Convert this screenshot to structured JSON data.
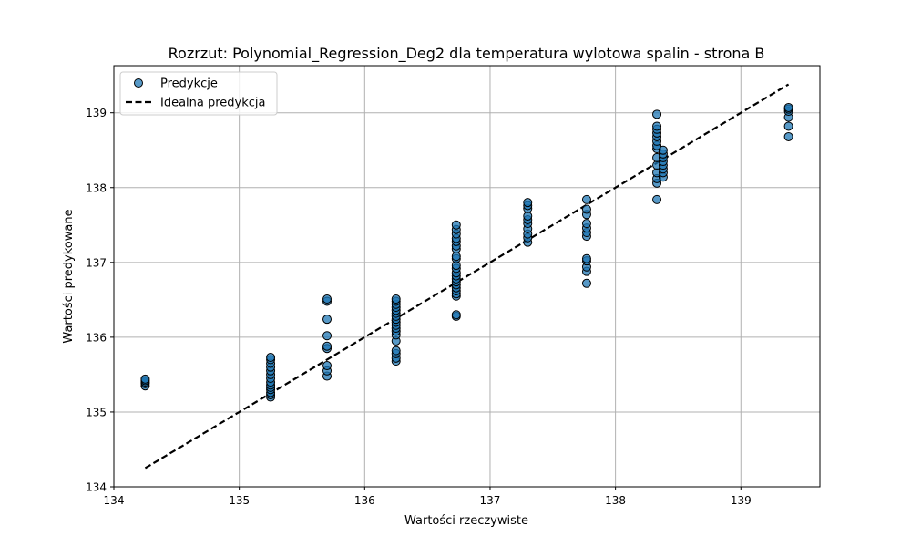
{
  "chart_data": {
    "type": "scatter",
    "title": "Rozrzut: Polynomial_Regression_Deg2 dla temperatura wylotowa spalin - strona B",
    "xlabel": "Wartości rzeczywiste",
    "ylabel": "Wartości predykowane",
    "xlim": [
      134.0,
      139.63
    ],
    "ylim": [
      134.0,
      139.63
    ],
    "xticks": [
      134,
      135,
      136,
      137,
      138,
      139
    ],
    "yticks": [
      134,
      135,
      136,
      137,
      138,
      139
    ],
    "grid": true,
    "legend_position": "top-left",
    "legend": [
      "Predykcje",
      "Idealna predykcja"
    ],
    "series": [
      {
        "name": "Predykcje",
        "kind": "scatter",
        "color": "#1f77b4",
        "points": [
          [
            134.25,
            135.35
          ],
          [
            134.25,
            135.38
          ],
          [
            134.25,
            135.4
          ],
          [
            134.25,
            135.42
          ],
          [
            134.25,
            135.44
          ],
          [
            135.25,
            135.2
          ],
          [
            135.25,
            135.23
          ],
          [
            135.25,
            135.26
          ],
          [
            135.25,
            135.3
          ],
          [
            135.25,
            135.33
          ],
          [
            135.25,
            135.36
          ],
          [
            135.25,
            135.4
          ],
          [
            135.25,
            135.45
          ],
          [
            135.25,
            135.5
          ],
          [
            135.25,
            135.55
          ],
          [
            135.25,
            135.6
          ],
          [
            135.25,
            135.65
          ],
          [
            135.25,
            135.7
          ],
          [
            135.25,
            135.73
          ],
          [
            135.7,
            135.48
          ],
          [
            135.7,
            135.55
          ],
          [
            135.7,
            135.62
          ],
          [
            135.7,
            135.85
          ],
          [
            135.7,
            135.88
          ],
          [
            135.7,
            136.02
          ],
          [
            135.7,
            136.24
          ],
          [
            135.7,
            136.48
          ],
          [
            135.7,
            136.51
          ],
          [
            136.25,
            135.68
          ],
          [
            136.25,
            135.72
          ],
          [
            136.25,
            135.78
          ],
          [
            136.25,
            135.82
          ],
          [
            136.25,
            135.95
          ],
          [
            136.25,
            136.03
          ],
          [
            136.25,
            136.08
          ],
          [
            136.25,
            136.12
          ],
          [
            136.25,
            136.16
          ],
          [
            136.25,
            136.2
          ],
          [
            136.25,
            136.24
          ],
          [
            136.25,
            136.28
          ],
          [
            136.25,
            136.32
          ],
          [
            136.25,
            136.36
          ],
          [
            136.25,
            136.4
          ],
          [
            136.25,
            136.44
          ],
          [
            136.25,
            136.48
          ],
          [
            136.25,
            136.51
          ],
          [
            136.73,
            136.28
          ],
          [
            136.73,
            136.3
          ],
          [
            136.73,
            136.55
          ],
          [
            136.73,
            136.58
          ],
          [
            136.73,
            136.62
          ],
          [
            136.73,
            136.66
          ],
          [
            136.73,
            136.7
          ],
          [
            136.73,
            136.74
          ],
          [
            136.73,
            136.78
          ],
          [
            136.73,
            136.82
          ],
          [
            136.73,
            136.86
          ],
          [
            136.73,
            136.92
          ],
          [
            136.73,
            136.96
          ],
          [
            136.73,
            137.05
          ],
          [
            136.73,
            137.08
          ],
          [
            136.73,
            137.18
          ],
          [
            136.73,
            137.22
          ],
          [
            136.73,
            137.28
          ],
          [
            136.73,
            137.32
          ],
          [
            136.73,
            137.38
          ],
          [
            136.73,
            137.44
          ],
          [
            136.73,
            137.5
          ],
          [
            137.3,
            137.27
          ],
          [
            137.3,
            137.33
          ],
          [
            137.3,
            137.38
          ],
          [
            137.3,
            137.45
          ],
          [
            137.3,
            137.52
          ],
          [
            137.3,
            137.57
          ],
          [
            137.3,
            137.62
          ],
          [
            137.3,
            137.72
          ],
          [
            137.3,
            137.76
          ],
          [
            137.3,
            137.8
          ],
          [
            137.77,
            136.72
          ],
          [
            137.77,
            136.88
          ],
          [
            137.77,
            136.94
          ],
          [
            137.77,
            137.02
          ],
          [
            137.77,
            137.05
          ],
          [
            137.77,
            137.35
          ],
          [
            137.77,
            137.4
          ],
          [
            137.77,
            137.46
          ],
          [
            137.77,
            137.52
          ],
          [
            137.77,
            137.64
          ],
          [
            137.77,
            137.71
          ],
          [
            137.77,
            137.84
          ],
          [
            138.33,
            137.84
          ],
          [
            138.33,
            138.06
          ],
          [
            138.33,
            138.12
          ],
          [
            138.33,
            138.2
          ],
          [
            138.33,
            138.3
          ],
          [
            138.33,
            138.4
          ],
          [
            138.33,
            138.52
          ],
          [
            138.33,
            138.56
          ],
          [
            138.33,
            138.62
          ],
          [
            138.33,
            138.68
          ],
          [
            138.33,
            138.73
          ],
          [
            138.33,
            138.78
          ],
          [
            138.33,
            138.82
          ],
          [
            138.33,
            138.98
          ],
          [
            138.38,
            138.14
          ],
          [
            138.38,
            138.2
          ],
          [
            138.38,
            138.25
          ],
          [
            138.38,
            138.3
          ],
          [
            138.38,
            138.35
          ],
          [
            138.38,
            138.4
          ],
          [
            138.38,
            138.45
          ],
          [
            138.38,
            138.5
          ],
          [
            139.38,
            138.68
          ],
          [
            139.38,
            138.82
          ],
          [
            139.38,
            138.94
          ],
          [
            139.38,
            139.02
          ],
          [
            139.38,
            139.05
          ],
          [
            139.38,
            139.07
          ]
        ]
      },
      {
        "name": "Idealna predykcja",
        "kind": "line",
        "style": "dashed",
        "color": "#000000",
        "x": [
          134.25,
          139.38
        ],
        "y": [
          134.25,
          139.38
        ]
      }
    ]
  }
}
